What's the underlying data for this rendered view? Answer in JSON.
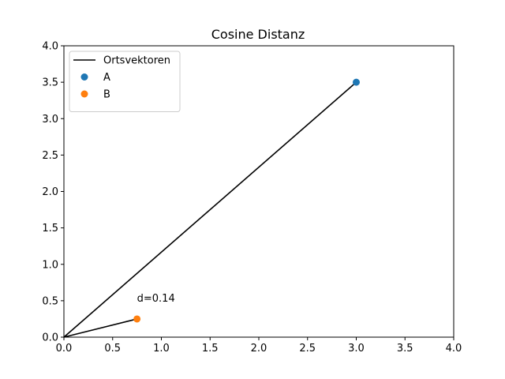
{
  "chart_data": {
    "type": "scatter",
    "title": "Cosine Distanz",
    "xlabel": "",
    "ylabel": "",
    "xlim": [
      0,
      4
    ],
    "ylim": [
      0,
      4
    ],
    "xticks": [
      "0.0",
      "0.5",
      "1.0",
      "1.5",
      "2.0",
      "2.5",
      "3.0",
      "3.5",
      "4.0"
    ],
    "yticks": [
      "0.0",
      "0.5",
      "1.0",
      "1.5",
      "2.0",
      "2.5",
      "3.0",
      "3.5",
      "4.0"
    ],
    "grid": false,
    "legend_position": "top-left",
    "lines": [
      {
        "name": "Ortsvektoren",
        "color": "#000000",
        "segments": [
          {
            "x": [
              0,
              3.0
            ],
            "y": [
              0,
              3.5
            ]
          },
          {
            "x": [
              0,
              0.75
            ],
            "y": [
              0,
              0.25
            ]
          }
        ]
      }
    ],
    "series": [
      {
        "name": "A",
        "color": "#1f77b4",
        "x": [
          3.0
        ],
        "y": [
          3.5
        ]
      },
      {
        "name": "B",
        "color": "#ff7f0e",
        "x": [
          0.75
        ],
        "y": [
          0.25
        ]
      }
    ],
    "annotations": [
      {
        "text": "d=0.14",
        "x": 0.75,
        "y": 0.5
      }
    ]
  }
}
